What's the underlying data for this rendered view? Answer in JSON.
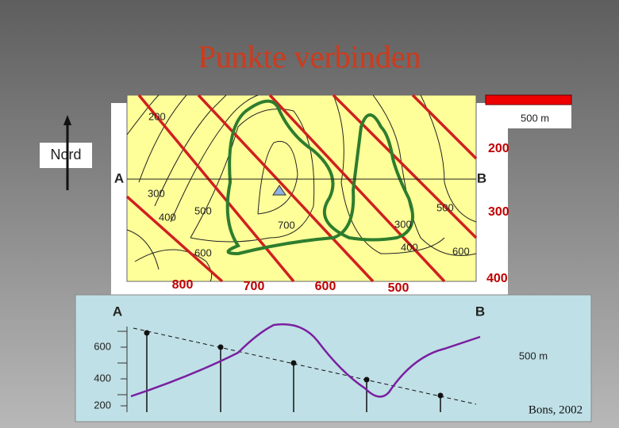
{
  "title": "Punkte verbinden",
  "north": "Nord",
  "scale": "500 m",
  "map": {
    "point_a": "A",
    "point_b": "B",
    "contour_labels": [
      "200",
      "300",
      "400",
      "500",
      "700",
      "300",
      "500",
      "400",
      "600",
      "600"
    ],
    "red_labels": [
      "200",
      "300",
      "400",
      "800",
      "700",
      "600",
      "500"
    ]
  },
  "profile": {
    "point_a": "A",
    "point_b": "B",
    "y_labels": [
      "600",
      "400",
      "200"
    ],
    "scale": "500 m"
  },
  "credit": "Bons, 2002"
}
